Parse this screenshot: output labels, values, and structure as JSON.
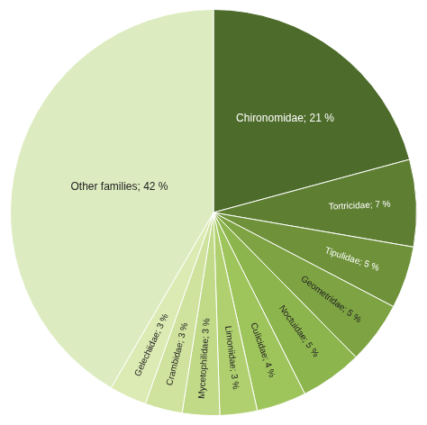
{
  "chart_data": {
    "type": "pie",
    "categories": [
      "Chironomidae; 21 %",
      "Tortricidae; 7 %",
      "Tipulidae; 5 %",
      "Geometridae; 5 %",
      "Noctuidae; 5 %",
      "Culicidae; 4 %",
      "Limoniidae; 3 %",
      "Mycetophilidae; 3 %",
      "Crambidae; 3 %",
      "Gelechiidae; 3 %",
      "Other families; 42 %"
    ],
    "values": [
      21,
      7,
      5,
      5,
      5,
      4,
      3,
      3,
      3,
      3,
      42
    ],
    "colors": [
      "#4d6b2a",
      "#5e7e32",
      "#6e9139",
      "#7da342",
      "#8db54d",
      "#9ec45c",
      "#b0d070",
      "#c0da88",
      "#cfe29e",
      "#dceab3",
      "#ddecc0"
    ]
  }
}
